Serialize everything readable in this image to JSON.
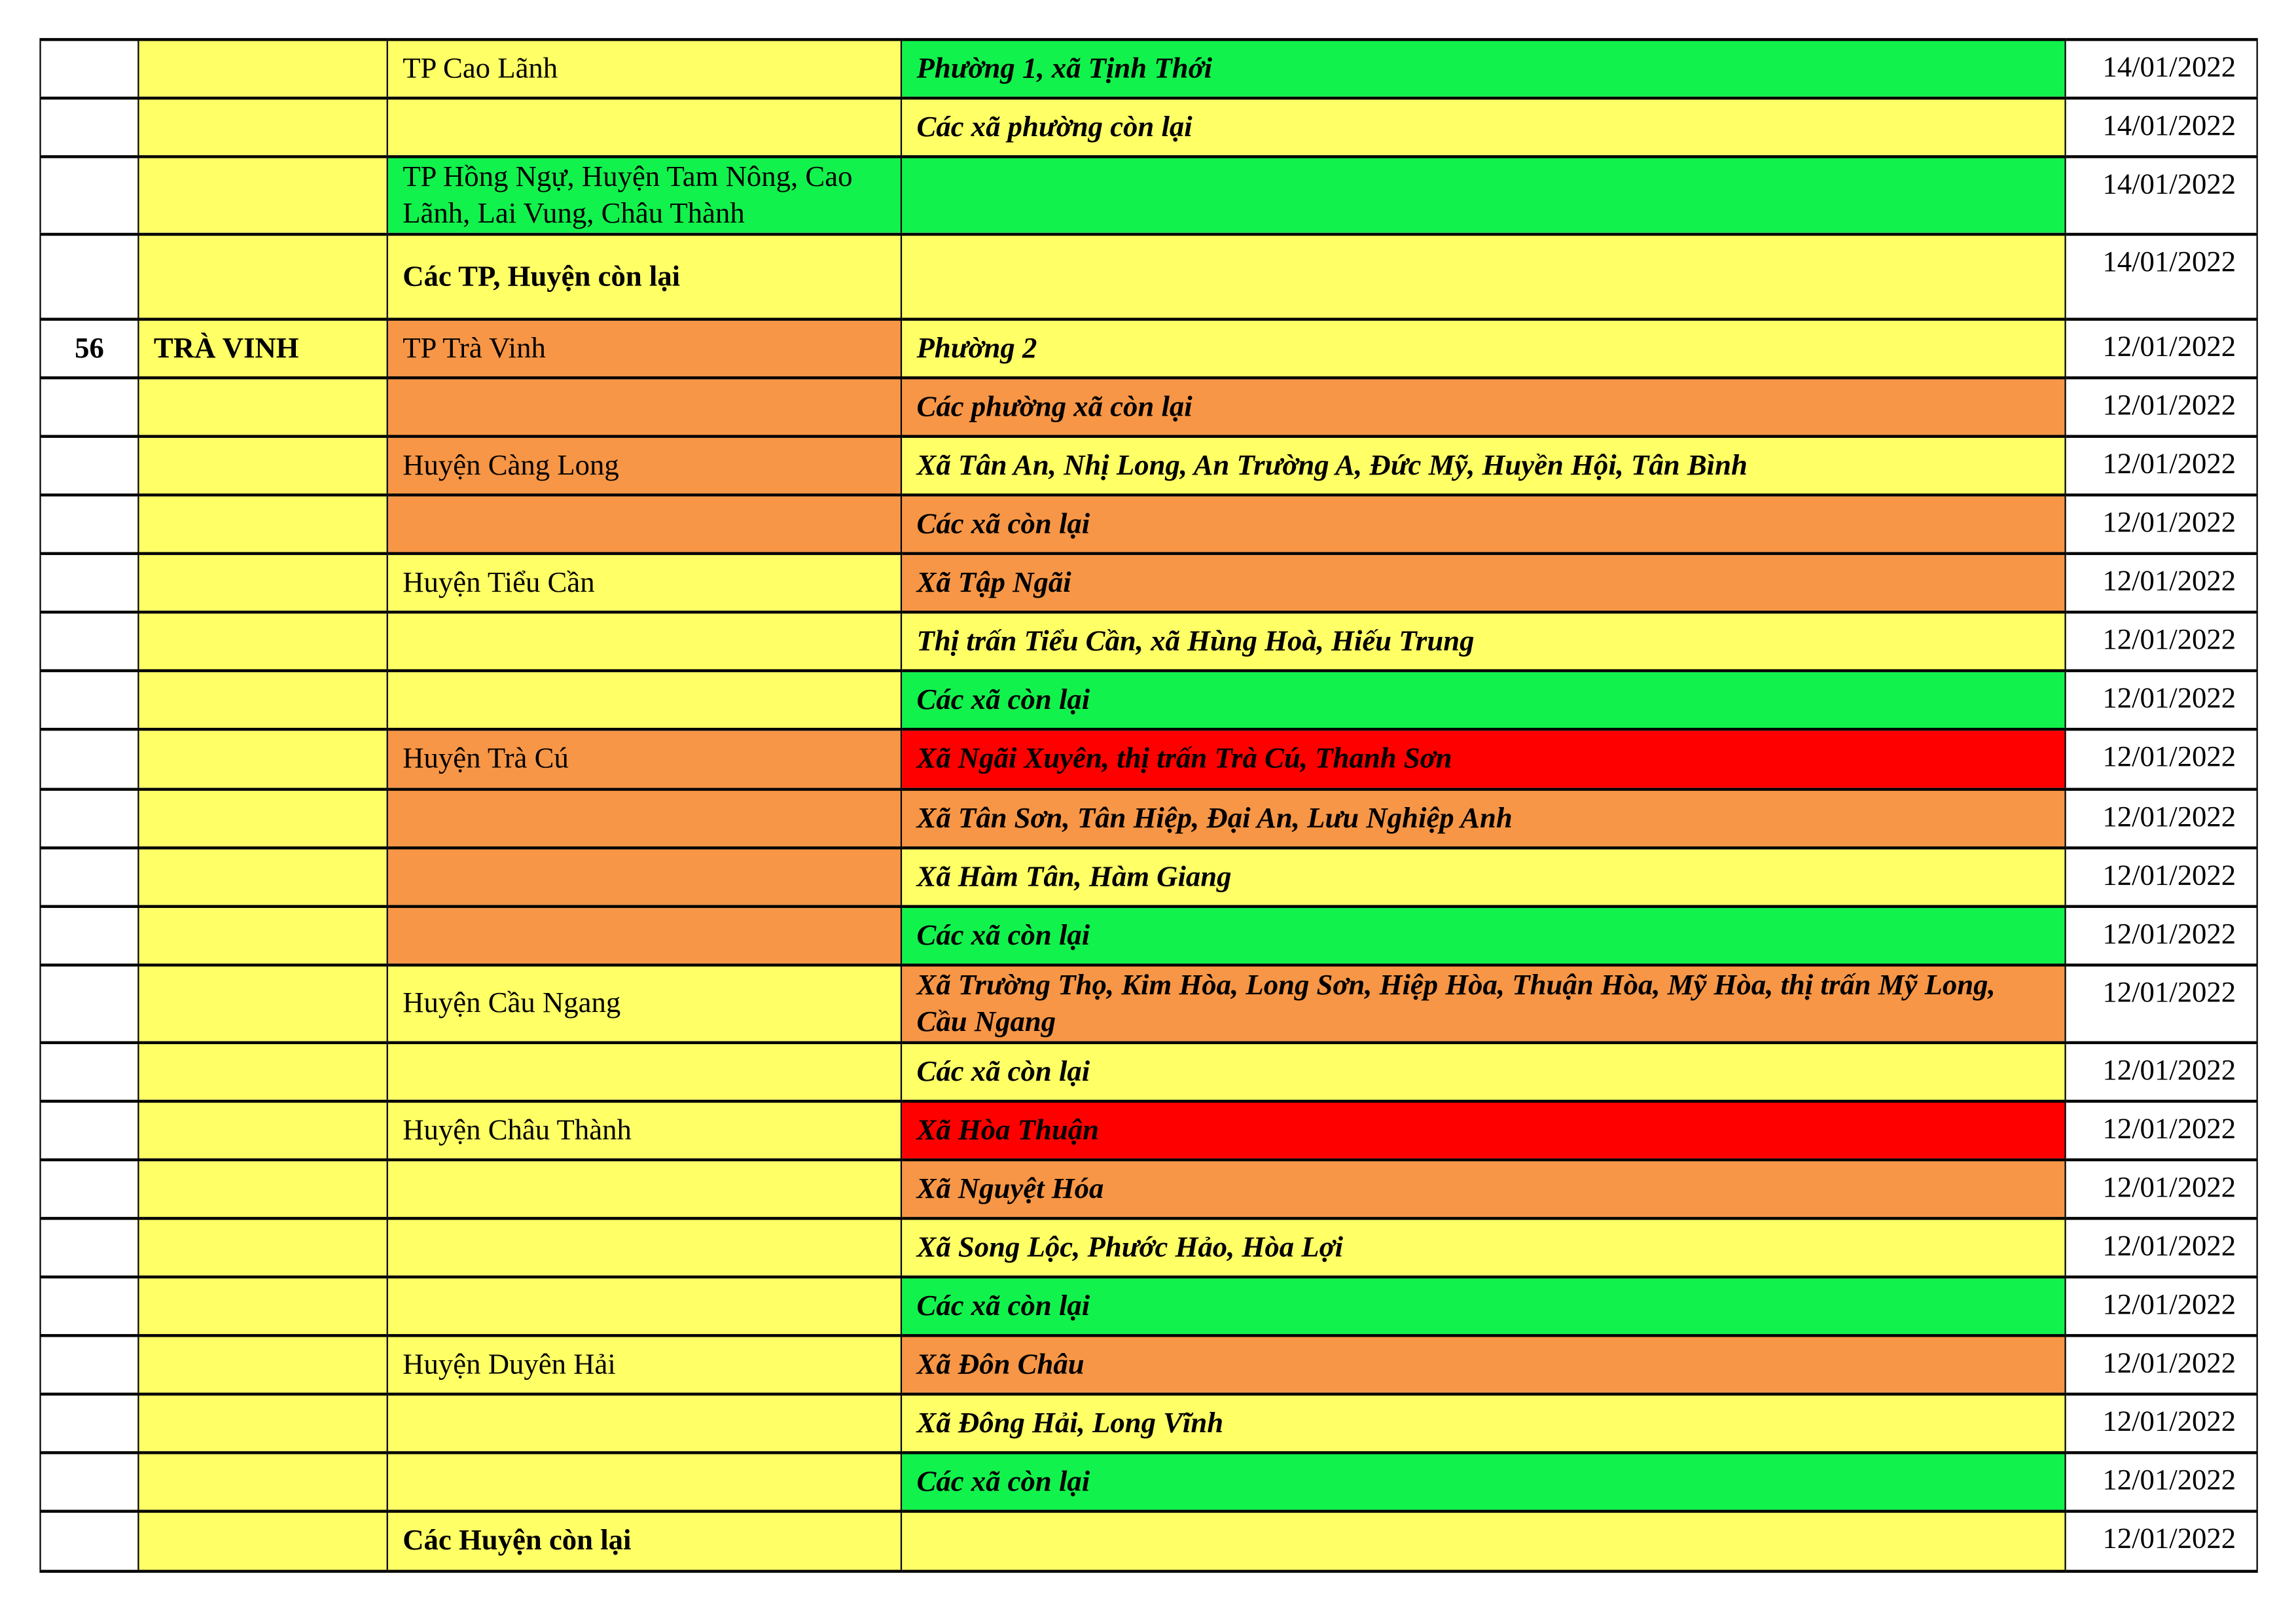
{
  "colors": {
    "yellow": "#FFFF66",
    "green": "#12F24C",
    "orange": "#F79646",
    "red": "#FF0000",
    "white": "#FFFFFF"
  },
  "rows": [
    {
      "num": "",
      "province": "",
      "district": "TP Cao Lãnh",
      "district_color": "yellow",
      "district_bold": false,
      "commune": "Phường 1, xã Tịnh Thới",
      "commune_color": "green",
      "date": "14/01/2022",
      "h": 40
    },
    {
      "num": "",
      "province": "",
      "district": "",
      "district_color": "yellow",
      "district_bold": false,
      "commune": "Các xã phường còn lại",
      "commune_color": "yellow",
      "date": "14/01/2022",
      "h": 40
    },
    {
      "num": "",
      "province": "",
      "district": "TP Hồng Ngự, Huyện Tam Nông, Cao Lãnh, Lai Vung, Châu Thành",
      "district_color": "green",
      "district_bold": false,
      "commune": "",
      "commune_color": "green",
      "date": "14/01/2022",
      "h": 53
    },
    {
      "num": "",
      "province": "",
      "district": "Các TP, Huyện còn lại",
      "district_color": "yellow",
      "district_bold": true,
      "commune": "",
      "commune_color": "yellow",
      "date": "14/01/2022",
      "h": 58
    },
    {
      "num": "56",
      "province": "TRÀ VINH",
      "district": "TP Trà Vinh",
      "district_color": "orange",
      "district_bold": false,
      "commune": "Phường 2",
      "commune_color": "yellow",
      "date": "12/01/2022",
      "h": 40
    },
    {
      "num": "",
      "province": "",
      "district": "",
      "district_color": "orange",
      "district_bold": false,
      "commune": "Các phường xã còn lại",
      "commune_color": "orange",
      "date": "12/01/2022",
      "h": 40
    },
    {
      "num": "",
      "province": "",
      "district": "Huyện Càng Long",
      "district_color": "orange",
      "district_bold": false,
      "commune": "Xã Tân An, Nhị Long, An Trường A, Đức Mỹ, Huyền Hội, Tân Bình",
      "commune_color": "yellow",
      "date": "12/01/2022",
      "h": 40
    },
    {
      "num": "",
      "province": "",
      "district": "",
      "district_color": "orange",
      "district_bold": false,
      "commune": "Các xã còn lại",
      "commune_color": "orange",
      "date": "12/01/2022",
      "h": 40
    },
    {
      "num": "",
      "province": "",
      "district": "Huyện Tiểu Cần",
      "district_color": "yellow",
      "district_bold": false,
      "commune": "Xã Tập Ngãi",
      "commune_color": "orange",
      "date": "12/01/2022",
      "h": 40
    },
    {
      "num": "",
      "province": "",
      "district": "",
      "district_color": "yellow",
      "district_bold": false,
      "commune": "Thị trấn Tiểu Cần, xã Hùng Hoà, Hiếu Trung",
      "commune_color": "yellow",
      "date": "12/01/2022",
      "h": 40
    },
    {
      "num": "",
      "province": "",
      "district": "",
      "district_color": "yellow",
      "district_bold": false,
      "commune": "Các xã còn lại",
      "commune_color": "green",
      "date": "12/01/2022",
      "h": 40
    },
    {
      "num": "",
      "province": "",
      "district": "Huyện Trà Cú",
      "district_color": "orange",
      "district_bold": false,
      "commune": "Xã Ngãi Xuyên, thị trấn Trà Cú, Thanh Sơn",
      "commune_color": "red",
      "date": "12/01/2022",
      "h": 41
    },
    {
      "num": "",
      "province": "",
      "district": "",
      "district_color": "orange",
      "district_bold": false,
      "commune": "Xã Tân Sơn, Tân Hiệp, Đại An, Lưu Nghiệp Anh",
      "commune_color": "orange",
      "date": "12/01/2022",
      "h": 40
    },
    {
      "num": "",
      "province": "",
      "district": "",
      "district_color": "orange",
      "district_bold": false,
      "commune": "Xã Hàm Tân, Hàm Giang",
      "commune_color": "yellow",
      "date": "12/01/2022",
      "h": 40
    },
    {
      "num": "",
      "province": "",
      "district": "",
      "district_color": "orange",
      "district_bold": false,
      "commune": "Các xã còn lại",
      "commune_color": "green",
      "date": "12/01/2022",
      "h": 40
    },
    {
      "num": "",
      "province": "",
      "district": "Huyện Cầu Ngang",
      "district_color": "yellow",
      "district_bold": false,
      "commune": "Xã Trường Thọ, Kim Hòa, Long Sơn, Hiệp Hòa, Thuận Hòa, Mỹ Hòa, thị trấn Mỹ Long, Cầu Ngang",
      "commune_color": "orange",
      "date": "12/01/2022",
      "h": 53
    },
    {
      "num": "",
      "province": "",
      "district": "",
      "district_color": "yellow",
      "district_bold": false,
      "commune": "Các xã còn lại",
      "commune_color": "yellow",
      "date": "12/01/2022",
      "h": 40
    },
    {
      "num": "",
      "province": "",
      "district": "Huyện Châu Thành",
      "district_color": "yellow",
      "district_bold": false,
      "commune": "Xã Hòa Thuận",
      "commune_color": "red",
      "date": "12/01/2022",
      "h": 40
    },
    {
      "num": "",
      "province": "",
      "district": "",
      "district_color": "yellow",
      "district_bold": false,
      "commune": "Xã Nguyệt Hóa",
      "commune_color": "orange",
      "date": "12/01/2022",
      "h": 40
    },
    {
      "num": "",
      "province": "",
      "district": "",
      "district_color": "yellow",
      "district_bold": false,
      "commune": "Xã Song Lộc, Phước Hảo, Hòa Lợi",
      "commune_color": "yellow",
      "date": "12/01/2022",
      "h": 40
    },
    {
      "num": "",
      "province": "",
      "district": "",
      "district_color": "yellow",
      "district_bold": false,
      "commune": "Các xã còn lại",
      "commune_color": "green",
      "date": "12/01/2022",
      "h": 40
    },
    {
      "num": "",
      "province": "",
      "district": "Huyện Duyên Hải",
      "district_color": "yellow",
      "district_bold": false,
      "commune": "Xã Đôn Châu",
      "commune_color": "orange",
      "date": "12/01/2022",
      "h": 40
    },
    {
      "num": "",
      "province": "",
      "district": "",
      "district_color": "yellow",
      "district_bold": false,
      "commune": "Xã Đông Hải, Long Vĩnh",
      "commune_color": "yellow",
      "date": "12/01/2022",
      "h": 40
    },
    {
      "num": "",
      "province": "",
      "district": "",
      "district_color": "yellow",
      "district_bold": false,
      "commune": "Các xã còn lại",
      "commune_color": "green",
      "date": "12/01/2022",
      "h": 40
    },
    {
      "num": "",
      "province": "",
      "district": "Các Huyện còn lại",
      "district_color": "yellow",
      "district_bold": true,
      "commune": "",
      "commune_color": "yellow",
      "date": "12/01/2022",
      "h": 41
    }
  ]
}
